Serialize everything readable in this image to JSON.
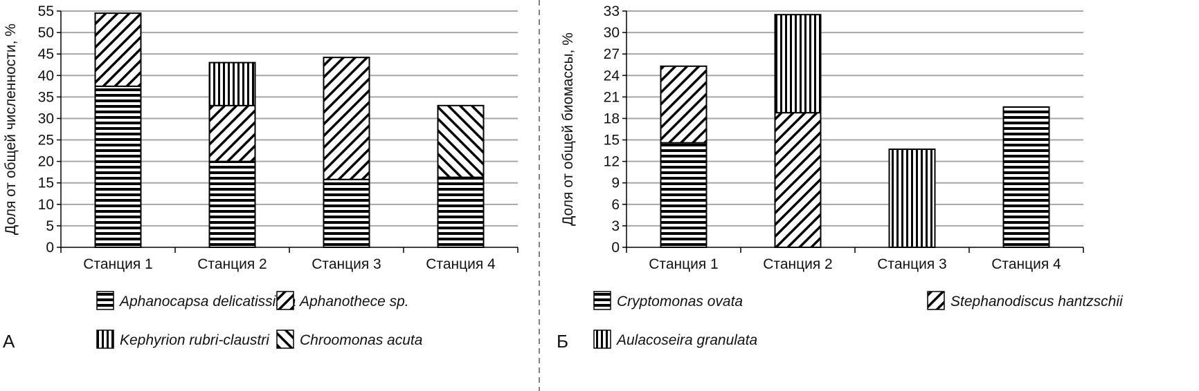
{
  "chart_data": [
    {
      "panel_label": "А",
      "type": "bar",
      "stacked": true,
      "ylabel": "Доля от общей численности, %",
      "ylim": [
        0,
        55
      ],
      "yticks": [
        0,
        5,
        10,
        15,
        20,
        25,
        30,
        35,
        40,
        45,
        50,
        55
      ],
      "grid": true,
      "legend_placement": "bottom",
      "categories": [
        "Станция 1",
        "Станция 2",
        "Станция 3",
        "Станция 4"
      ],
      "series": [
        {
          "name": "Aphanocapsa delicatissima",
          "pattern": "horizontal",
          "values": [
            37.5,
            20,
            15.8,
            16.3
          ]
        },
        {
          "name": "Aphanothece sp.",
          "pattern": "diagonal-up",
          "values": [
            17,
            13,
            28.4,
            0
          ]
        },
        {
          "name": "Kephyrion rubri-claustri",
          "pattern": "vertical",
          "values": [
            0,
            10,
            0,
            0
          ]
        },
        {
          "name": "Chroomonas acuta",
          "pattern": "diagonal-down",
          "values": [
            0,
            0,
            0,
            16.7
          ]
        }
      ]
    },
    {
      "panel_label": "Б",
      "type": "bar",
      "stacked": true,
      "ylabel": "Доля от общей биомассы, %",
      "ylim": [
        0,
        33
      ],
      "yticks": [
        0,
        3,
        6,
        9,
        12,
        15,
        18,
        21,
        24,
        27,
        30,
        33
      ],
      "grid": true,
      "legend_placement": "bottom",
      "categories": [
        "Станция 1",
        "Станция 2",
        "Станция 3",
        "Станция 4"
      ],
      "series": [
        {
          "name": "Cryptomonas ovata",
          "pattern": "horizontal",
          "values": [
            14.6,
            0,
            0,
            19.6
          ]
        },
        {
          "name": "Stephanodiscus hantzschii",
          "pattern": "diagonal-up",
          "values": [
            10.7,
            18.8,
            0,
            0
          ]
        },
        {
          "name": "Aulacoseira granulata",
          "pattern": "vertical",
          "values": [
            0,
            13.7,
            13.7,
            0
          ]
        }
      ]
    }
  ],
  "colors": {
    "grid": "#a6a6a6",
    "ink": "#000000",
    "divider": "#808080"
  }
}
